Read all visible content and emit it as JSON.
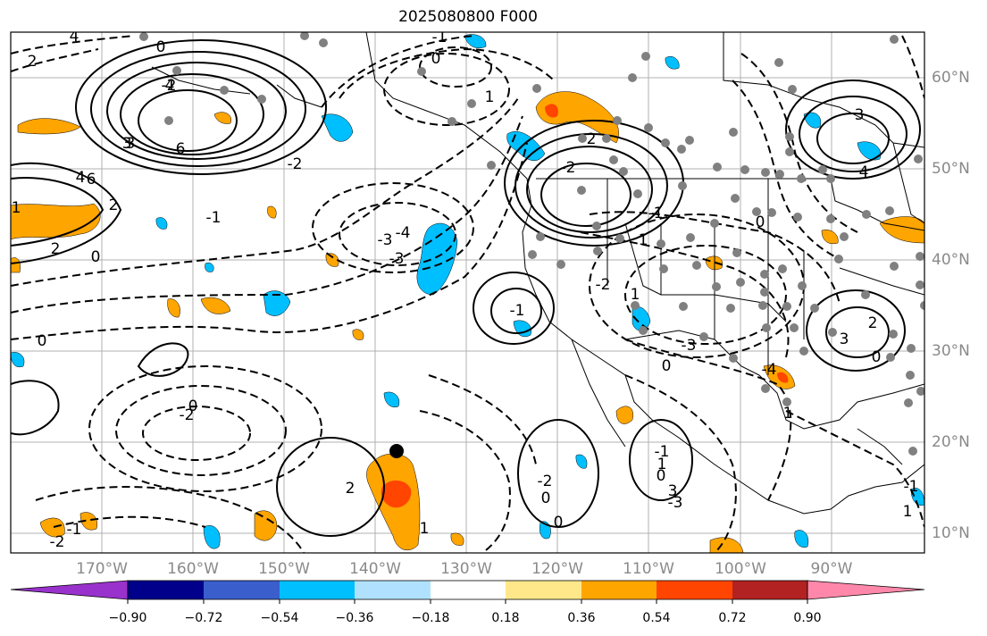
{
  "title": "2025080800 F000",
  "longitude_labels": [
    "170°W",
    "160°W",
    "150°W",
    "140°W",
    "130°W",
    "120°W",
    "110°W",
    "100°W",
    "90°W"
  ],
  "latitude_labels": [
    "60°N",
    "50°N",
    "40°N",
    "30°N",
    "20°N",
    "10°N"
  ],
  "contour_labels": [
    "0",
    "2",
    "4",
    "-2",
    "4",
    "6",
    "3",
    "2",
    "4",
    "6",
    "2",
    "3",
    "0",
    "-1",
    "1",
    "-2",
    "0",
    "-4",
    "-3",
    "-3",
    "0",
    "-1",
    "1",
    "2",
    "-2",
    "-1",
    "1",
    "0",
    "3",
    "4",
    "-2",
    "1",
    "-1",
    "0",
    "-3",
    "-4",
    "3",
    "2",
    "0",
    "1",
    "-2",
    "0",
    "2",
    "1",
    "-2",
    "0",
    "0",
    "-3",
    "1",
    "-1",
    "0",
    "3",
    "-2",
    "-1",
    "-1",
    "1"
  ],
  "colorbar": {
    "ticks": [
      "−0.90",
      "−0.72",
      "−0.54",
      "−0.36",
      "−0.18",
      "0.18",
      "0.36",
      "0.54",
      "0.72",
      "0.90"
    ],
    "colors": [
      "#9932cc",
      "#00008b",
      "#3a5fcd",
      "#00bfff",
      "#b0e2ff",
      "#ffffff",
      "#ffe88a",
      "#ffa500",
      "#ff4500",
      "#b22222",
      "#ff88aa"
    ]
  },
  "colors": {
    "positive_fill": "#ffa500",
    "strong_positive_fill": "#ff4500",
    "negative_fill": "#00bfff",
    "station_dots": "#808080",
    "storm_marker": "#000000"
  }
}
